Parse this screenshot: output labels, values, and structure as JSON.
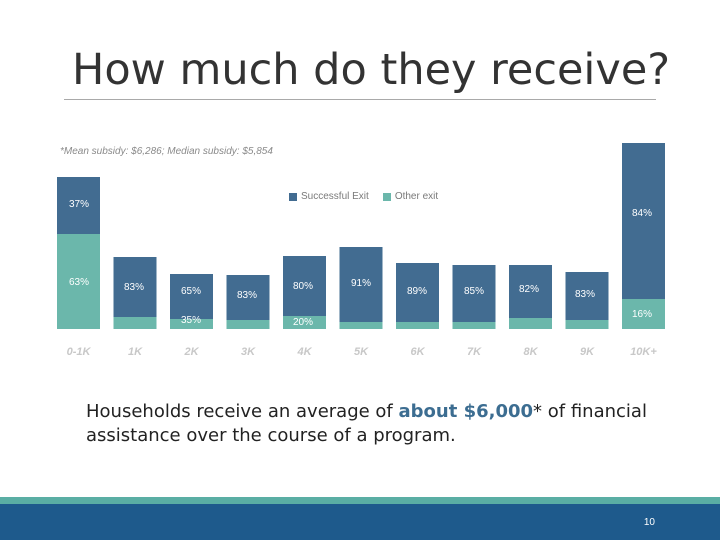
{
  "slide": {
    "title": "How much do they receive?",
    "note": "*Mean subsidy: $6,286; Median subsidy: $5,854",
    "body_prefix": "Households receive an average of ",
    "body_emphasis": "about $6,000",
    "body_asterisk": "*",
    "body_suffix": " of financial assistance over the course of a program.",
    "page_number": "10"
  },
  "colors": {
    "successful": "#426c91",
    "other": "#6bb7ab",
    "footer_bar": "#1e5a8c",
    "footer_band": "#5aaea4",
    "emphasis": "#3c6d91"
  },
  "chart_data": {
    "type": "bar",
    "stacked": true,
    "categories": [
      "0-1K",
      "1K",
      "2K",
      "3K",
      "4K",
      "5K",
      "6K",
      "7K",
      "8K",
      "9K",
      "10K+"
    ],
    "series": [
      {
        "name": "Successful Exit",
        "values": [
          37,
          null,
          null,
          null,
          null,
          null,
          null,
          null,
          null,
          null,
          84
        ],
        "labels": [
          "37%",
          "83%",
          "65%",
          "83%",
          "80%",
          "91%",
          "89%",
          "85%",
          "82%",
          "83%",
          "84%"
        ]
      },
      {
        "name": "Other exit",
        "values": [
          63,
          null,
          35,
          null,
          20,
          null,
          null,
          null,
          null,
          null,
          16
        ],
        "labels": [
          "63%",
          "",
          "35%",
          "",
          "20%",
          "",
          "",
          "",
          "",
          "",
          "16%"
        ]
      }
    ],
    "legend_position": "top-center",
    "grid": false
  }
}
